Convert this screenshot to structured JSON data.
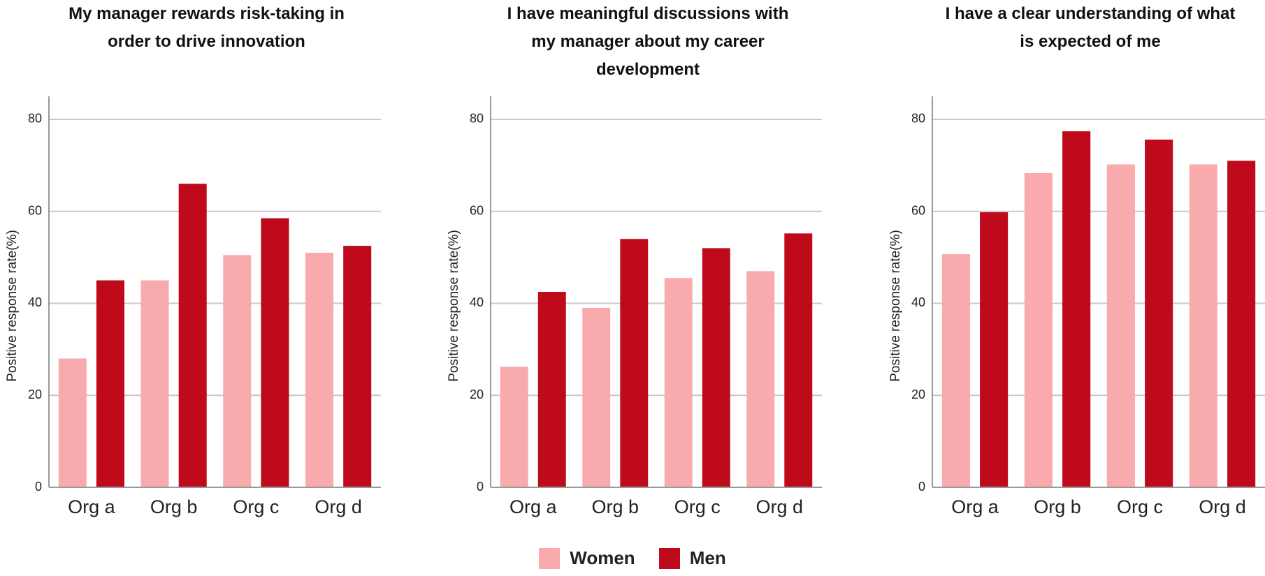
{
  "chart_data": [
    {
      "type": "bar",
      "title": "My manager rewards risk-taking in\norder to drive innovation",
      "y_label": "Positive response rate(%)",
      "categories": [
        "Org a",
        "Org b",
        "Org c",
        "Org d"
      ],
      "series": [
        {
          "name": "Women",
          "color": "#f9aaad",
          "values": [
            28,
            45,
            50.5,
            51
          ]
        },
        {
          "name": "Men",
          "color": "#be0a1a",
          "values": [
            45,
            66,
            58.5,
            52.5
          ]
        }
      ],
      "ylim": [
        0,
        85
      ],
      "yticks": [
        0,
        20,
        40,
        60,
        80
      ],
      "grid": true
    },
    {
      "type": "bar",
      "title": "I have meaningful discussions with\nmy manager about my career\ndevelopment",
      "y_label": "Positive response rate(%)",
      "categories": [
        "Org a",
        "Org b",
        "Org c",
        "Org d"
      ],
      "series": [
        {
          "name": "Women",
          "color": "#f9aaad",
          "values": [
            26.2,
            39,
            45.5,
            47
          ]
        },
        {
          "name": "Men",
          "color": "#be0a1a",
          "values": [
            42.5,
            54,
            52,
            55.2
          ]
        }
      ],
      "ylim": [
        0,
        85
      ],
      "yticks": [
        0,
        20,
        40,
        60,
        80
      ],
      "grid": true
    },
    {
      "type": "bar",
      "title": "I have a clear understanding of what\nis expected of me",
      "y_label": "Positive response rate(%)",
      "categories": [
        "Org a",
        "Org b",
        "Org c",
        "Org d"
      ],
      "series": [
        {
          "name": "Women",
          "color": "#f9aaad",
          "values": [
            50.7,
            68.3,
            70.2,
            70.2
          ]
        },
        {
          "name": "Men",
          "color": "#be0a1a",
          "values": [
            59.8,
            77.4,
            75.6,
            71
          ]
        }
      ],
      "ylim": [
        0,
        85
      ],
      "yticks": [
        0,
        20,
        40,
        60,
        80
      ],
      "grid": true
    }
  ]
}
